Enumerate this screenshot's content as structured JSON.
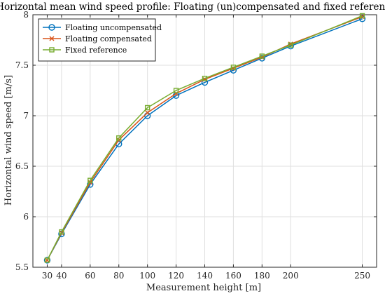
{
  "chart_data": {
    "type": "line",
    "title": "Horizontal mean wind speed profile: Floating (un)compensated and fixed reference",
    "xlabel": "Measurement height [m]",
    "ylabel": "Horizontal wind speed [m/s]",
    "xlim": [
      20,
      260
    ],
    "ylim": [
      5.5,
      8
    ],
    "xticks": [
      30,
      40,
      60,
      80,
      100,
      120,
      140,
      160,
      180,
      200,
      250
    ],
    "yticks": [
      5.5,
      6,
      6.5,
      7,
      7.5,
      8
    ],
    "grid": true,
    "legend_position": "top-left",
    "x": [
      30,
      40,
      60,
      80,
      100,
      120,
      140,
      160,
      180,
      200,
      250
    ],
    "series": [
      {
        "name": "Floating uncompensated",
        "color": "#0072BD",
        "marker": "circle",
        "values": [
          5.57,
          5.83,
          6.32,
          6.72,
          7.0,
          7.2,
          7.33,
          7.45,
          7.57,
          7.69,
          7.96
        ]
      },
      {
        "name": "Floating compensated",
        "color": "#D95319",
        "marker": "x",
        "values": [
          5.57,
          5.84,
          6.34,
          6.76,
          7.03,
          7.22,
          7.36,
          7.47,
          7.58,
          7.71,
          7.98
        ]
      },
      {
        "name": "Fixed reference",
        "color": "#77AC30",
        "marker": "square",
        "values": [
          5.57,
          5.85,
          6.36,
          6.78,
          7.08,
          7.25,
          7.37,
          7.48,
          7.59,
          7.7,
          7.99
        ]
      }
    ]
  }
}
